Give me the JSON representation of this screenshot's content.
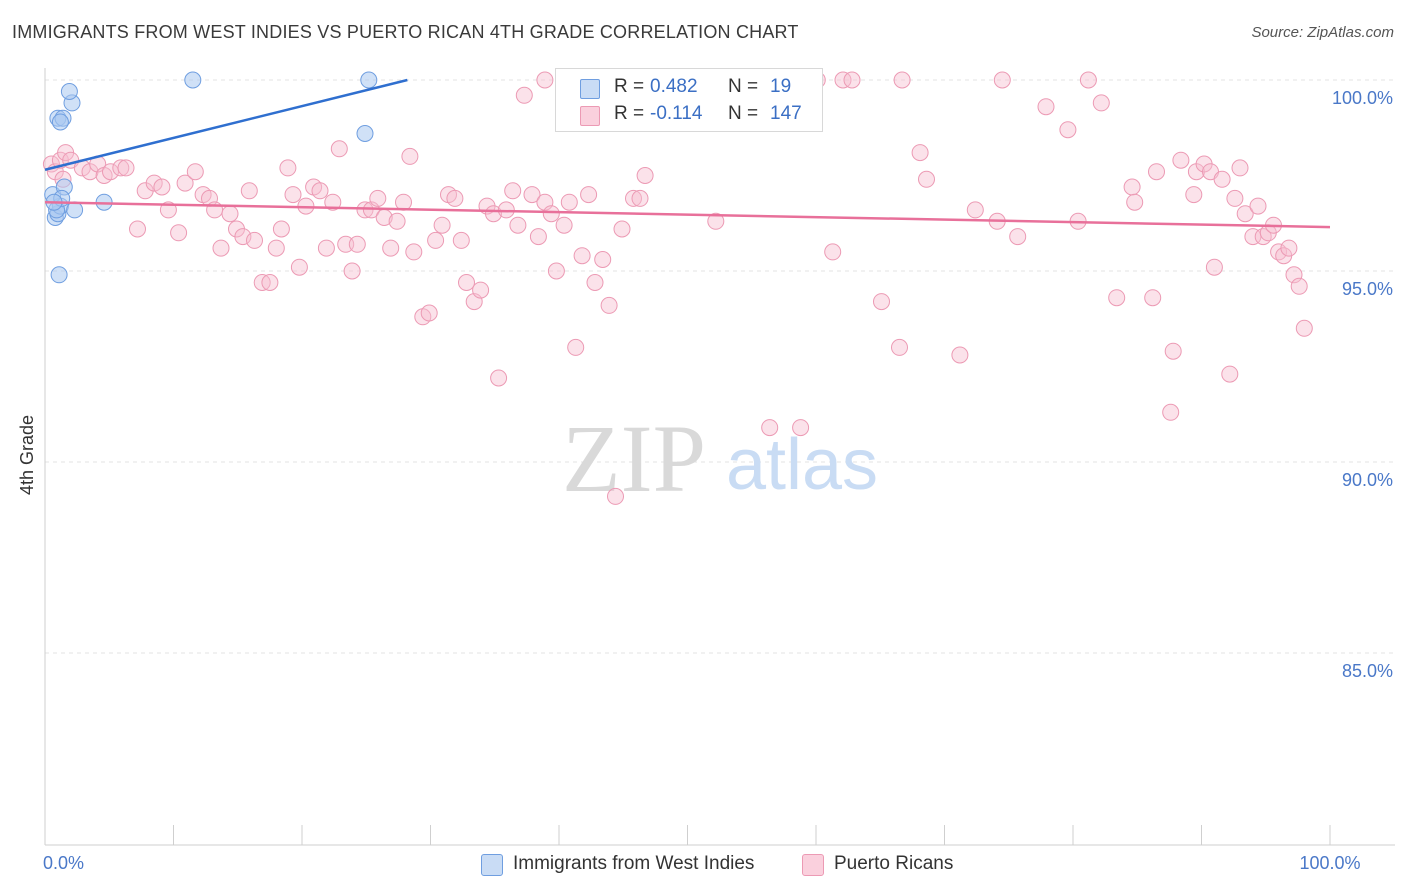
{
  "title": "IMMIGRANTS FROM WEST INDIES VS PUERTO RICAN 4TH GRADE CORRELATION CHART",
  "source": "Source: ZipAtlas.com",
  "watermark": {
    "zip": "ZIP",
    "atlas": "atlas"
  },
  "legend": {
    "series1": {
      "r_label": "R =",
      "r_value": "0.482",
      "n_label": "N =",
      "n_value": "19"
    },
    "series2": {
      "r_label": "R =",
      "r_value": "-0.114",
      "n_label": "N =",
      "n_value": "147"
    }
  },
  "colors": {
    "blue_fill": "#aac8f0",
    "blue_stroke": "#6f9ee0",
    "blue_line": "#2f6fcf",
    "pink_fill": "#f7bfd0",
    "pink_stroke": "#ec9ab4",
    "pink_line": "#e8709a",
    "tick_label": "#4a78c8",
    "grid": "#e3e3e3"
  },
  "chart_data": {
    "type": "scatter",
    "title": "IMMIGRANTS FROM WEST INDIES VS PUERTO RICAN 4TH GRADE CORRELATION CHART",
    "xlabel": "",
    "ylabel": "4th Grade",
    "xlim": [
      0,
      100
    ],
    "ylim": [
      80.5,
      100.8
    ],
    "x_tick_labels": [
      {
        "value": 0,
        "label": "0.0%"
      },
      {
        "value": 100,
        "label": "100.0%"
      }
    ],
    "x_minor_ticks": [
      10,
      20,
      30,
      40,
      50,
      60,
      70,
      80,
      90
    ],
    "y_ticks": [
      {
        "value": 100,
        "label": "100.0%"
      },
      {
        "value": 95,
        "label": "95.0%"
      },
      {
        "value": 90,
        "label": "90.0%"
      },
      {
        "value": 85,
        "label": "85.0%"
      }
    ],
    "series": [
      {
        "name": "Immigrants from West Indies",
        "color": "blue",
        "trend": {
          "x0": 0,
          "y0": 97.65,
          "x1": 28.2,
          "y1": 100.0
        },
        "points": [
          [
            0.8,
            96.4
          ],
          [
            1.0,
            96.5
          ],
          [
            1.2,
            96.7
          ],
          [
            0.6,
            97.0
          ],
          [
            1.5,
            97.2
          ],
          [
            1.0,
            99.0
          ],
          [
            1.4,
            99.0
          ],
          [
            1.2,
            98.9
          ],
          [
            2.1,
            99.4
          ],
          [
            1.9,
            99.7
          ],
          [
            1.1,
            94.9
          ],
          [
            2.3,
            96.6
          ],
          [
            4.6,
            96.8
          ],
          [
            11.5,
            100.0
          ],
          [
            24.9,
            98.6
          ],
          [
            25.2,
            100.0
          ],
          [
            0.9,
            96.6
          ],
          [
            1.3,
            96.9
          ],
          [
            0.7,
            96.8
          ]
        ]
      },
      {
        "name": "Puerto Ricans",
        "color": "pink",
        "trend": {
          "x0": 0,
          "y0": 96.8,
          "x1": 100,
          "y1": 96.15
        },
        "points": [
          [
            0.5,
            97.8
          ],
          [
            0.8,
            97.6
          ],
          [
            1.2,
            97.9
          ],
          [
            1.6,
            98.1
          ],
          [
            2.0,
            97.9
          ],
          [
            1.4,
            97.4
          ],
          [
            2.9,
            97.7
          ],
          [
            3.5,
            97.6
          ],
          [
            4.1,
            97.8
          ],
          [
            4.6,
            97.5
          ],
          [
            5.1,
            97.6
          ],
          [
            5.9,
            97.7
          ],
          [
            6.3,
            97.7
          ],
          [
            7.2,
            96.1
          ],
          [
            7.8,
            97.1
          ],
          [
            8.5,
            97.3
          ],
          [
            9.1,
            97.2
          ],
          [
            9.6,
            96.6
          ],
          [
            10.4,
            96.0
          ],
          [
            10.9,
            97.3
          ],
          [
            11.7,
            97.6
          ],
          [
            12.3,
            97.0
          ],
          [
            12.8,
            96.9
          ],
          [
            13.2,
            96.6
          ],
          [
            13.7,
            95.6
          ],
          [
            14.4,
            96.5
          ],
          [
            14.9,
            96.1
          ],
          [
            15.4,
            95.9
          ],
          [
            15.9,
            97.1
          ],
          [
            16.3,
            95.8
          ],
          [
            16.9,
            94.7
          ],
          [
            17.5,
            94.7
          ],
          [
            18.0,
            95.6
          ],
          [
            18.4,
            96.1
          ],
          [
            18.9,
            97.7
          ],
          [
            19.3,
            97.0
          ],
          [
            19.8,
            95.1
          ],
          [
            20.3,
            96.7
          ],
          [
            20.9,
            97.2
          ],
          [
            21.4,
            97.1
          ],
          [
            21.9,
            95.6
          ],
          [
            22.4,
            96.8
          ],
          [
            22.9,
            98.2
          ],
          [
            23.4,
            95.7
          ],
          [
            23.9,
            95.0
          ],
          [
            24.3,
            95.7
          ],
          [
            24.9,
            96.6
          ],
          [
            25.4,
            96.6
          ],
          [
            25.9,
            96.9
          ],
          [
            26.4,
            96.4
          ],
          [
            26.9,
            95.6
          ],
          [
            27.4,
            96.3
          ],
          [
            27.9,
            96.8
          ],
          [
            28.4,
            98.0
          ],
          [
            28.7,
            95.5
          ],
          [
            29.4,
            93.8
          ],
          [
            29.9,
            93.9
          ],
          [
            30.4,
            95.8
          ],
          [
            30.9,
            96.2
          ],
          [
            31.4,
            97.0
          ],
          [
            31.9,
            96.9
          ],
          [
            32.4,
            95.8
          ],
          [
            32.8,
            94.7
          ],
          [
            33.4,
            94.2
          ],
          [
            33.9,
            94.5
          ],
          [
            34.4,
            96.7
          ],
          [
            34.9,
            96.5
          ],
          [
            35.3,
            92.2
          ],
          [
            35.9,
            96.6
          ],
          [
            36.4,
            97.1
          ],
          [
            36.8,
            96.2
          ],
          [
            37.3,
            99.6
          ],
          [
            37.9,
            97.0
          ],
          [
            38.4,
            95.9
          ],
          [
            38.9,
            96.8
          ],
          [
            39.4,
            96.5
          ],
          [
            39.8,
            95.0
          ],
          [
            40.4,
            96.2
          ],
          [
            40.8,
            96.8
          ],
          [
            41.3,
            93.0
          ],
          [
            41.8,
            95.4
          ],
          [
            42.3,
            97.0
          ],
          [
            42.8,
            94.7
          ],
          [
            43.4,
            95.3
          ],
          [
            43.9,
            94.1
          ],
          [
            44.4,
            89.1
          ],
          [
            44.9,
            96.1
          ],
          [
            45.3,
            100.0
          ],
          [
            45.8,
            96.9
          ],
          [
            46.3,
            96.9
          ],
          [
            46.7,
            97.5
          ],
          [
            47.3,
            100.0
          ],
          [
            52.2,
            96.3
          ],
          [
            56.4,
            90.9
          ],
          [
            58.8,
            90.9
          ],
          [
            57.0,
            100.0
          ],
          [
            60.1,
            100.0
          ],
          [
            62.1,
            100.0
          ],
          [
            61.3,
            95.5
          ],
          [
            65.1,
            94.2
          ],
          [
            66.7,
            100.0
          ],
          [
            66.5,
            93.0
          ],
          [
            68.1,
            98.1
          ],
          [
            68.6,
            97.4
          ],
          [
            71.2,
            92.8
          ],
          [
            72.4,
            96.6
          ],
          [
            74.1,
            96.3
          ],
          [
            75.7,
            95.9
          ],
          [
            77.9,
            99.3
          ],
          [
            79.6,
            98.7
          ],
          [
            80.4,
            96.3
          ],
          [
            81.2,
            100.0
          ],
          [
            82.2,
            99.4
          ],
          [
            83.4,
            94.3
          ],
          [
            84.6,
            97.2
          ],
          [
            84.8,
            96.8
          ],
          [
            86.2,
            94.3
          ],
          [
            86.5,
            97.6
          ],
          [
            87.6,
            91.3
          ],
          [
            87.8,
            92.9
          ],
          [
            88.4,
            97.9
          ],
          [
            89.4,
            97.0
          ],
          [
            89.6,
            97.6
          ],
          [
            90.2,
            97.8
          ],
          [
            90.7,
            97.6
          ],
          [
            91.0,
            95.1
          ],
          [
            91.6,
            97.4
          ],
          [
            92.2,
            92.3
          ],
          [
            92.6,
            96.9
          ],
          [
            93.0,
            97.7
          ],
          [
            93.4,
            96.5
          ],
          [
            94.0,
            95.9
          ],
          [
            94.4,
            96.7
          ],
          [
            94.8,
            95.9
          ],
          [
            95.2,
            96.0
          ],
          [
            95.6,
            96.2
          ],
          [
            96.0,
            95.5
          ],
          [
            96.4,
            95.4
          ],
          [
            96.8,
            95.6
          ],
          [
            97.2,
            94.9
          ],
          [
            97.6,
            94.6
          ],
          [
            98.0,
            93.5
          ],
          [
            74.5,
            100.0
          ],
          [
            48.2,
            100.0
          ],
          [
            43.4,
            100.0
          ],
          [
            38.9,
            100.0
          ],
          [
            62.8,
            100.0
          ]
        ]
      }
    ]
  },
  "bottom_legend": [
    {
      "label": "Immigrants from West Indies"
    },
    {
      "label": "Puerto Ricans"
    }
  ]
}
